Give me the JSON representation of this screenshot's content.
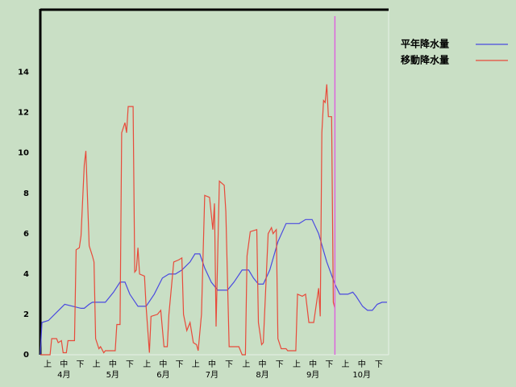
{
  "chart_data": {
    "type": "line",
    "xlim": [
      0,
      214
    ],
    "ylim": [
      0,
      17.1
    ],
    "yticks": [
      0,
      2,
      4,
      6,
      8,
      10,
      12,
      14
    ],
    "xticks": [
      {
        "value": 4.5,
        "label": "上"
      },
      {
        "value": 14.5,
        "label": "中"
      },
      {
        "value": 24.5,
        "label": "下"
      },
      {
        "value": 34.5,
        "label": "上"
      },
      {
        "value": 44.5,
        "label": "中"
      },
      {
        "value": 55,
        "label": "下"
      },
      {
        "value": 65.5,
        "label": "上"
      },
      {
        "value": 75.5,
        "label": "中"
      },
      {
        "value": 85.5,
        "label": "下"
      },
      {
        "value": 95.5,
        "label": "上"
      },
      {
        "value": 105.5,
        "label": "中"
      },
      {
        "value": 116,
        "label": "下"
      },
      {
        "value": 126.5,
        "label": "上"
      },
      {
        "value": 136.5,
        "label": "中"
      },
      {
        "value": 147,
        "label": "下"
      },
      {
        "value": 157.5,
        "label": "上"
      },
      {
        "value": 167.5,
        "label": "中"
      },
      {
        "value": 177.5,
        "label": "下"
      },
      {
        "value": 187.5,
        "label": "上"
      },
      {
        "value": 197.5,
        "label": "中"
      },
      {
        "value": 208,
        "label": "下"
      }
    ],
    "month_labels": [
      {
        "value": 14.5,
        "label": "4月"
      },
      {
        "value": 44.5,
        "label": "5月"
      },
      {
        "value": 75.5,
        "label": "6月"
      },
      {
        "value": 105.5,
        "label": "7月"
      },
      {
        "value": 136.5,
        "label": "8月"
      },
      {
        "value": 167.5,
        "label": "9月"
      },
      {
        "value": 197.5,
        "label": "10月"
      }
    ],
    "vline_x": 181,
    "vline_color": "#dd66dd",
    "series": [
      {
        "name": "平年降水量",
        "color": "#4a4ae0",
        "x": [
          0,
          1,
          5,
          10,
          15,
          20,
          25,
          27,
          30,
          32,
          40,
          45,
          49,
          52,
          55,
          60,
          65,
          70,
          75,
          79,
          83,
          87,
          92,
          95,
          98,
          101,
          105,
          109,
          115,
          119,
          124,
          128,
          131,
          134,
          137,
          141,
          146,
          151,
          153,
          159,
          163,
          167,
          171,
          176,
          181,
          184,
          189,
          192,
          194,
          198,
          201,
          204,
          207,
          210,
          213
        ],
        "values": [
          0,
          1.6,
          1.7,
          2.1,
          2.5,
          2.4,
          2.3,
          2.3,
          2.5,
          2.6,
          2.6,
          3.1,
          3.6,
          3.6,
          3.0,
          2.4,
          2.4,
          3.0,
          3.8,
          4.0,
          4.0,
          4.2,
          4.6,
          5.0,
          5.0,
          4.3,
          3.6,
          3.2,
          3.2,
          3.6,
          4.2,
          4.2,
          3.8,
          3.5,
          3.5,
          4.2,
          5.6,
          6.5,
          6.5,
          6.5,
          6.7,
          6.7,
          6.0,
          4.6,
          3.5,
          3.0,
          3.0,
          3.1,
          2.9,
          2.4,
          2.2,
          2.2,
          2.5,
          2.6,
          2.6
        ]
      },
      {
        "name": "移動降水量",
        "color": "#e84a3a",
        "x": [
          0,
          6,
          7,
          10,
          11,
          13,
          14,
          16,
          17,
          21,
          22,
          24,
          25,
          27,
          28,
          30,
          32,
          33,
          34,
          36,
          37,
          39,
          40,
          46,
          47,
          49,
          50,
          52,
          53,
          54,
          57,
          58,
          59,
          60,
          61,
          64,
          65,
          67,
          68,
          72,
          74,
          76,
          78,
          79,
          82,
          85,
          87,
          88,
          90,
          92,
          94,
          96,
          97,
          99,
          101,
          104,
          106,
          107,
          108,
          110,
          113,
          114,
          116,
          122,
          124,
          126,
          127,
          129,
          133,
          134,
          136,
          137,
          140,
          142,
          143,
          145,
          146,
          148,
          151,
          152,
          157,
          158,
          161,
          163,
          165,
          168,
          171,
          172,
          173,
          174,
          175,
          176,
          177,
          178,
          179,
          180,
          181
        ],
        "values": [
          0,
          0,
          0.8,
          0.8,
          0.6,
          0.7,
          0.1,
          0.1,
          0.7,
          0.7,
          5.2,
          5.3,
          5.9,
          9.4,
          10.1,
          5.4,
          4.9,
          4.6,
          0.8,
          0.3,
          0.4,
          0.1,
          0.2,
          0.2,
          1.5,
          1.5,
          11.0,
          11.5,
          11.0,
          12.3,
          12.3,
          4.1,
          4.2,
          5.3,
          4.0,
          3.9,
          2.4,
          0.1,
          1.9,
          2.0,
          2.2,
          0.4,
          0.4,
          2.0,
          4.6,
          4.7,
          4.8,
          2.0,
          1.2,
          1.6,
          0.6,
          0.5,
          0.2,
          2.0,
          7.9,
          7.8,
          6.2,
          7.5,
          1.4,
          8.6,
          8.4,
          7.1,
          0.4,
          0.4,
          0,
          0,
          4.9,
          6.1,
          6.2,
          1.6,
          0.5,
          0.6,
          6.0,
          6.3,
          6.0,
          6.2,
          0.8,
          0.3,
          0.3,
          0.2,
          0.2,
          3.0,
          2.9,
          3.0,
          1.6,
          1.6,
          3.3,
          1.9,
          11.0,
          12.6,
          12.5,
          13.4,
          11.8,
          11.8,
          11.8,
          2.6,
          2.3
        ]
      }
    ]
  }
}
